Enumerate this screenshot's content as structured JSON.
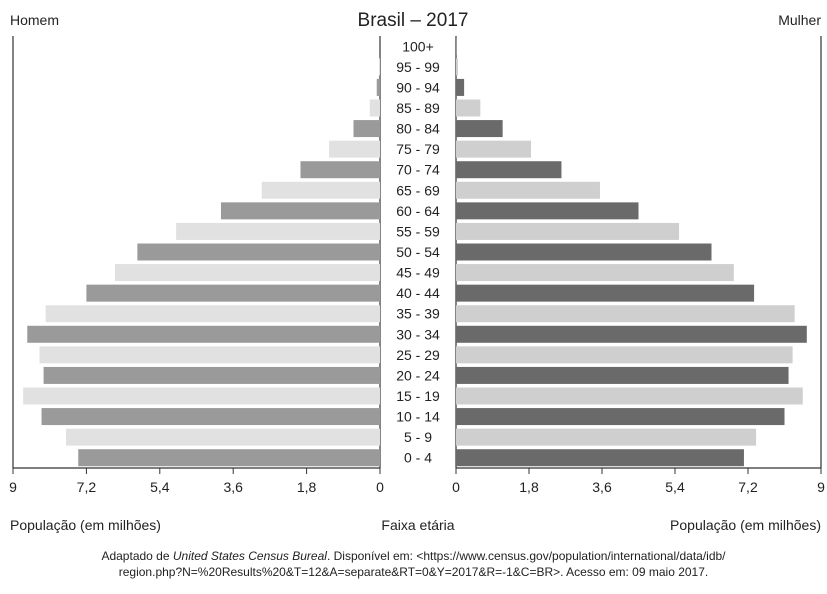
{
  "chart_data": {
    "type": "bar",
    "title": "Brasil – 2017",
    "left_label": "Homem",
    "right_label": "Mulher",
    "xlabel_left": "População (em milhões)",
    "xlabel_right": "População (em milhões)",
    "center_label": "Faixa etária",
    "xlim": [
      0,
      9
    ],
    "x_ticks": [
      "9",
      "7,2",
      "5,4",
      "3,6",
      "1,8",
      "0"
    ],
    "x_ticks_right": [
      "0",
      "1,8",
      "3,6",
      "5,4",
      "7,2",
      "9"
    ],
    "categories": [
      "100+",
      "95 - 99",
      "90 - 94",
      "85 - 89",
      "80 - 84",
      "75 - 79",
      "70 - 74",
      "65 - 69",
      "60 - 64",
      "55 - 59",
      "50 - 54",
      "45 - 49",
      "40 - 44",
      "35 - 39",
      "30 - 34",
      "25 - 29",
      "20 - 24",
      "15 - 19",
      "10 - 14",
      "5 - 9",
      "0 - 4"
    ],
    "series": [
      {
        "name": "Homem",
        "side": "left",
        "values": [
          0.0,
          0.02,
          0.08,
          0.25,
          0.65,
          1.25,
          1.95,
          2.9,
          3.9,
          5.0,
          5.95,
          6.5,
          7.2,
          8.2,
          8.65,
          8.35,
          8.25,
          8.75,
          8.3,
          7.7,
          7.4
        ]
      },
      {
        "name": "Mulher",
        "side": "right",
        "values": [
          0.01,
          0.05,
          0.2,
          0.6,
          1.15,
          1.85,
          2.6,
          3.55,
          4.5,
          5.5,
          6.3,
          6.85,
          7.35,
          8.35,
          8.65,
          8.3,
          8.2,
          8.55,
          8.1,
          7.4,
          7.1
        ]
      }
    ],
    "colors": {
      "dark_left": "#9a9a9a",
      "light_left": "#e1e1e1",
      "dark_right": "#6a6a6a",
      "light_right": "#cfcfcf",
      "axis": "#333333"
    }
  },
  "source": {
    "prefix": "Adaptado de ",
    "emph": "United States Census Bureal",
    "line1_rest": ". Disponível em: <https://www.census.gov/population/international/data/idb/",
    "line2": "region.php?N=%20Results%20&T=12&A=separate&RT=0&Y=2017&R=-1&C=BR>. Acesso em: 09 maio 2017."
  }
}
